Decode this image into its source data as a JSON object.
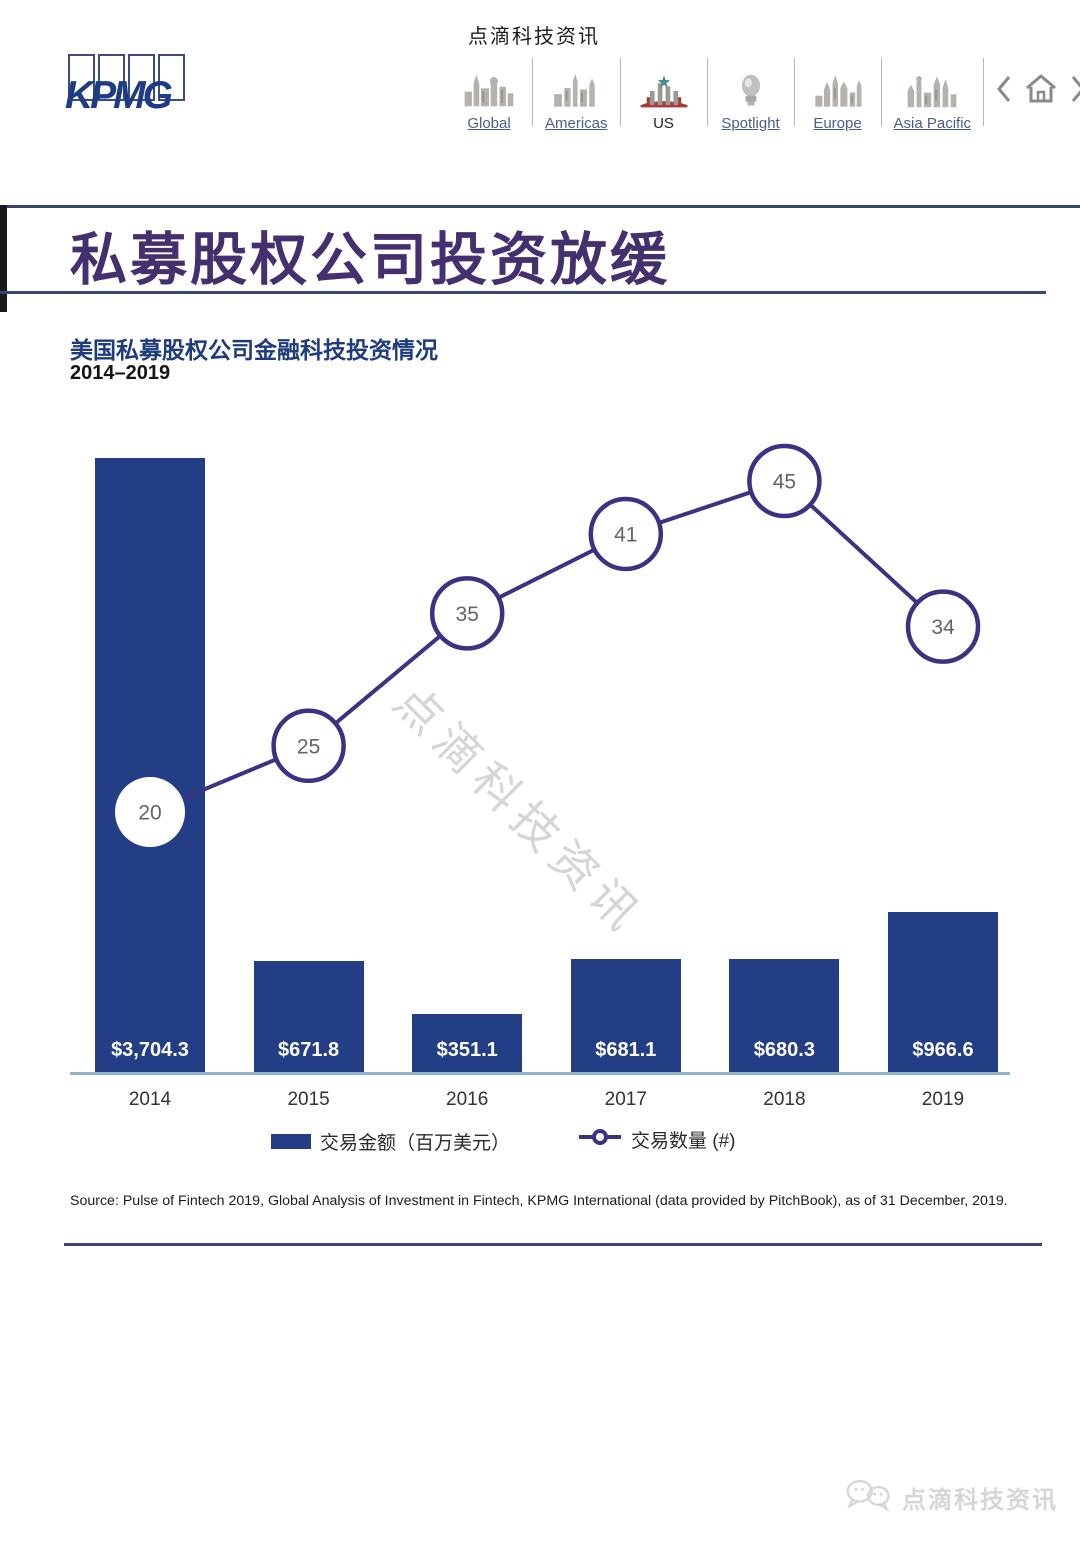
{
  "header": {
    "brand": "KPMG",
    "watermark": "点滴科技资讯",
    "nav": {
      "items": [
        {
          "label": "Global",
          "icon": "global-cityscape-icon"
        },
        {
          "label": "Americas",
          "icon": "americas-cityscape-icon"
        },
        {
          "label": "US",
          "icon": "us-cityscape-icon"
        },
        {
          "label": "Spotlight",
          "icon": "spotlight-icon"
        },
        {
          "label": "Europe",
          "icon": "europe-cityscape-icon"
        },
        {
          "label": "Asia Pacific",
          "icon": "asia-pacific-cityscape-icon"
        }
      ]
    }
  },
  "title": "私募股权公司投资放缓",
  "subtitle": "美国私募股权公司金融科技投资情况",
  "period": "2014–2019",
  "chart_data": {
    "type": "bar+line",
    "title": "美国私募股权公司金融科技投资情况 2014–2019",
    "categories": [
      "2014",
      "2015",
      "2016",
      "2017",
      "2018",
      "2019"
    ],
    "series": [
      {
        "name": "交易金额（百万美元）",
        "type": "bar",
        "values": [
          3704.3,
          671.8,
          351.1,
          681.1,
          680.3,
          966.6
        ],
        "value_labels": [
          "$3,704.3",
          "$671.8",
          "$351.1",
          "$681.1",
          "$680.3",
          "$966.6"
        ],
        "color": "#243e85"
      },
      {
        "name": "交易数量 (#)",
        "type": "line",
        "values": [
          20,
          25,
          35,
          41,
          45,
          34
        ],
        "color": "#3a3384"
      }
    ],
    "xlabel": "",
    "ylabel": "",
    "bar_ylim": [
      0,
      4000
    ],
    "line_ylim": [
      0,
      50
    ],
    "grid": false,
    "legend_position": "bottom"
  },
  "legend": {
    "bar": "交易金额（百万美元）",
    "line": "交易数量 (#)"
  },
  "source": "Source: Pulse of Fintech 2019, Global Analysis of Investment in Fintech, KPMG International (data provided by PitchBook), as of 31 December, 2019.",
  "watermarks": {
    "diagonal": "点滴科技资讯",
    "footer": "点滴科技资讯"
  },
  "colors": {
    "bar": "#243e85",
    "line": "#3a3384",
    "marker_text": "#646464",
    "title": "#45306f",
    "rule": "#35486f",
    "axis": "#8fb3c9"
  }
}
